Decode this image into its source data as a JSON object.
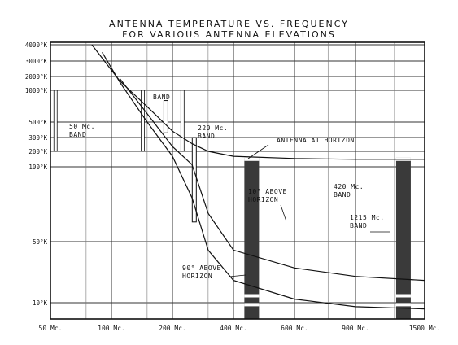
{
  "chart_data": {
    "type": "line",
    "title_lines": [
      "ANTENNA TEMPERATURE VS. FREQUENCY",
      "FOR VARIOUS ANTENNA ELEVATIONS"
    ],
    "xlabel": "",
    "ylabel": "",
    "x_scale": "log",
    "y_scale": "log",
    "grid": true,
    "x_ticks": [
      {
        "value": 50,
        "label": "50 Mc."
      },
      {
        "value": 100,
        "label": "100 Mc."
      },
      {
        "value": 200,
        "label": "200 Mc."
      },
      {
        "value": 400,
        "label": "400 Mc."
      },
      {
        "value": 600,
        "label": "600 Mc."
      },
      {
        "value": 900,
        "label": "900 Mc."
      },
      {
        "value": 1500,
        "label": "1500 Mc."
      }
    ],
    "y_ticks": [
      {
        "value": 10,
        "label": "10°K"
      },
      {
        "value": 50,
        "label": "50°K"
      },
      {
        "value": 100,
        "label": "100°K"
      },
      {
        "value": 200,
        "label": "200°K"
      },
      {
        "value": 300,
        "label": "300°K"
      },
      {
        "value": 500,
        "label": "500°K"
      },
      {
        "value": 1000,
        "label": "1000°K"
      },
      {
        "value": 2000,
        "label": "2000°K"
      },
      {
        "value": 3000,
        "label": "3000°K"
      },
      {
        "value": 4000,
        "label": "4000°K"
      }
    ],
    "xlim": [
      50,
      1500
    ],
    "ylim": [
      8,
      4000
    ],
    "series": [
      {
        "name": "ANTENNA AT HORIZON",
        "x": [
          80,
          110,
          150,
          200,
          250,
          300,
          400,
          600,
          900,
          1500
        ],
        "y": [
          4000,
          1600,
          700,
          370,
          250,
          200,
          160,
          145,
          140,
          140
        ]
      },
      {
        "name": "10° ABOVE HORIZON",
        "x": [
          110,
          150,
          200,
          250,
          300,
          400,
          600,
          900,
          1500
        ],
        "y": [
          1800,
          600,
          230,
          110,
          65,
          40,
          25,
          20,
          18
        ]
      },
      {
        "name": "90° ABOVE HORIZON",
        "x": [
          90,
          110,
          150,
          200,
          250,
          300,
          400,
          600,
          900,
          1500
        ],
        "y": [
          3500,
          1500,
          500,
          160,
          75,
          40,
          18,
          11,
          9,
          8.5
        ]
      }
    ],
    "bands": [
      {
        "label_lines": [
          "50 Mc.",
          "BAND"
        ],
        "x": 52,
        "type": "mark"
      },
      {
        "label_lines": [
          "",
          "BAND"
        ],
        "x": 140,
        "type": "mark"
      },
      {
        "label_lines": [
          "220 Mc.",
          "BAND"
        ],
        "x": 220,
        "type": "mark"
      },
      {
        "label_lines": [
          "420 Mc.",
          "BAND"
        ],
        "x_range": [
          430,
          450
        ],
        "type": "shaded"
      },
      {
        "label_lines": [
          "1215 Mc.",
          "BAND"
        ],
        "x_range": [
          1215,
          1300
        ],
        "type": "shaded"
      }
    ]
  }
}
